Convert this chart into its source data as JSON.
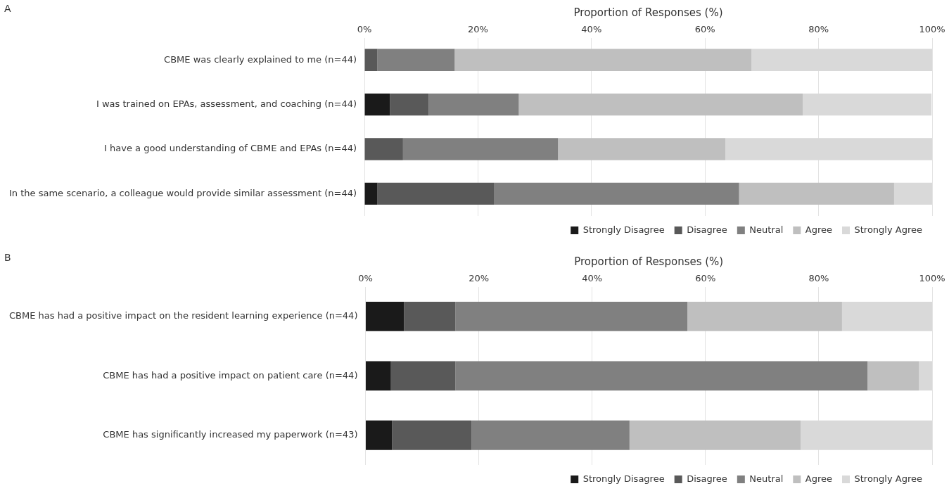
{
  "chart_data": [
    {
      "type": "bar",
      "orientation": "horizontal",
      "stacked": true,
      "xlabel": "Proportion of Responses (%)",
      "annotations": [
        "A"
      ],
      "categories": [
        "CBME was clearly explained to me (n=44)",
        "I was trained on EPAs, assessment, and coaching (n=44)",
        "I have a good understanding of CBME and EPAs (n=44)",
        "In the same scenario, a colleague would provide similar assessment (n=44)"
      ],
      "series": [
        {
          "name": "Strongly Disagree",
          "color": "#1a1a1a",
          "values": [
            0,
            4.5,
            0,
            2.3
          ]
        },
        {
          "name": "Disagree",
          "color": "#595959",
          "values": [
            2.3,
            6.8,
            6.8,
            20.5
          ]
        },
        {
          "name": "Neutral",
          "color": "#808080",
          "values": [
            13.6,
            15.9,
            27.3,
            43.2
          ]
        },
        {
          "name": "Agree",
          "color": "#bfbfbf",
          "values": [
            52.3,
            50,
            29.5,
            27.3
          ]
        },
        {
          "name": "Strongly Agree",
          "color": "#d9d9d9",
          "values": [
            31.8,
            22.7,
            36.4,
            6.8
          ]
        }
      ],
      "xlim": [
        0,
        100
      ],
      "xticks": [
        {
          "value": 0,
          "label": "0%"
        },
        {
          "value": 20,
          "label": "20%"
        },
        {
          "value": 40,
          "label": "40%"
        },
        {
          "value": 60,
          "label": "60%"
        },
        {
          "value": 80,
          "label": "80%"
        },
        {
          "value": 100,
          "label": "100%"
        }
      ],
      "grid": "x",
      "legend": "bottom"
    },
    {
      "type": "bar",
      "orientation": "horizontal",
      "stacked": true,
      "xlabel": "Proportion of Responses (%)",
      "annotations": [
        "B"
      ],
      "categories": [
        "CBME has had a positive impact on the resident learning experience (n=44)",
        "CBME has had a positive impact on patient care (n=44)",
        "CBME has significantly increased my paperwork (n=43)"
      ],
      "series": [
        {
          "name": "Strongly Disagree",
          "color": "#1a1a1a",
          "values": [
            6.8,
            4.5,
            4.7
          ]
        },
        {
          "name": "Disagree",
          "color": "#595959",
          "values": [
            9.1,
            11.4,
            14.0
          ]
        },
        {
          "name": "Neutral",
          "color": "#808080",
          "values": [
            40.9,
            72.7,
            27.9
          ]
        },
        {
          "name": "Agree",
          "color": "#bfbfbf",
          "values": [
            27.3,
            9.1,
            30.2
          ]
        },
        {
          "name": "Strongly Agree",
          "color": "#d9d9d9",
          "values": [
            15.9,
            2.3,
            23.3
          ]
        }
      ],
      "xlim": [
        0,
        100
      ],
      "xticks": [
        {
          "value": 0,
          "label": "0%"
        },
        {
          "value": 20,
          "label": "20%"
        },
        {
          "value": 40,
          "label": "40%"
        },
        {
          "value": 60,
          "label": "60%"
        },
        {
          "value": 80,
          "label": "80%"
        },
        {
          "value": 100,
          "label": "100%"
        }
      ],
      "grid": "x",
      "legend": "bottom"
    }
  ]
}
